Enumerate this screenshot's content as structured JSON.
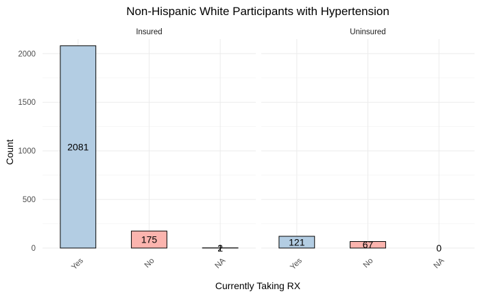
{
  "chart_data": {
    "type": "bar",
    "title": "Non-Hispanic White Participants with Hypertension",
    "xlabel": "Currently Taking RX",
    "ylabel": "Count",
    "categories": [
      "Yes",
      "No",
      "NA"
    ],
    "yticks": [
      "0",
      "500",
      "1000",
      "1500",
      "2000"
    ],
    "ylim": [
      0,
      2150
    ],
    "grid": true,
    "legend": "none",
    "colors": {
      "Yes": "#b3cde3",
      "No": "#fbb4ae",
      "NA": "#ccebc5"
    },
    "panels": [
      {
        "name": "Insured",
        "values": [
          2081,
          175,
          2
        ],
        "labels": [
          "2081",
          "175",
          "2"
        ],
        "na_extra_label": "1"
      },
      {
        "name": "Uninsured",
        "values": [
          121,
          67,
          0
        ],
        "labels": [
          "121",
          "67",
          "0"
        ]
      }
    ]
  }
}
